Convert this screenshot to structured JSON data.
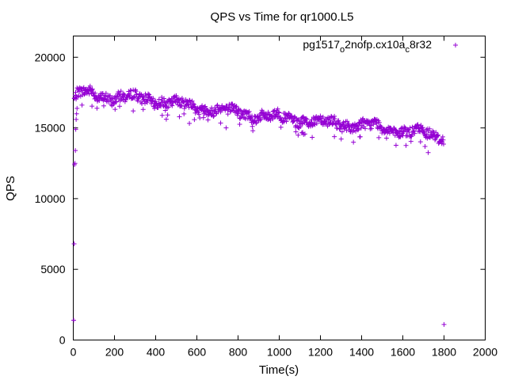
{
  "chart_data": {
    "type": "scatter",
    "title": "QPS vs Time for qr1000.L5",
    "xlabel": "Time(s)",
    "ylabel": "QPS",
    "xlim": [
      0,
      2000
    ],
    "ylim": [
      0,
      21500
    ],
    "xticks": [
      0,
      200,
      400,
      600,
      800,
      1000,
      1200,
      1400,
      1600,
      1800,
      2000
    ],
    "yticks": [
      0,
      5000,
      10000,
      15000,
      20000
    ],
    "grid": false,
    "legend_position": "top-right",
    "marker": "plus",
    "series": [
      {
        "name_main": "pg1517",
        "name_sub1": "o",
        "name_mid": "2nofp.cx10a",
        "name_sub2": "c",
        "name_end": "8r32",
        "color": "#9400d3",
        "trend": [
          [
            0,
            16800
          ],
          [
            20,
            17300
          ],
          [
            50,
            17500
          ],
          [
            100,
            17300
          ],
          [
            200,
            17200
          ],
          [
            300,
            17100
          ],
          [
            400,
            17000
          ],
          [
            500,
            16700
          ],
          [
            600,
            16500
          ],
          [
            700,
            16300
          ],
          [
            800,
            16100
          ],
          [
            900,
            15900
          ],
          [
            1000,
            15700
          ],
          [
            1100,
            15600
          ],
          [
            1200,
            15400
          ],
          [
            1300,
            15300
          ],
          [
            1400,
            15200
          ],
          [
            1500,
            15000
          ],
          [
            1600,
            14800
          ],
          [
            1700,
            14600
          ],
          [
            1800,
            14400
          ]
        ],
        "outliers": [
          [
            2,
            1400
          ],
          [
            4,
            6800
          ],
          [
            6,
            12400
          ],
          [
            8,
            12500
          ],
          [
            10,
            13400
          ],
          [
            12,
            14900
          ],
          [
            14,
            15600
          ],
          [
            16,
            16000
          ],
          [
            1800,
            1100
          ]
        ]
      }
    ]
  }
}
